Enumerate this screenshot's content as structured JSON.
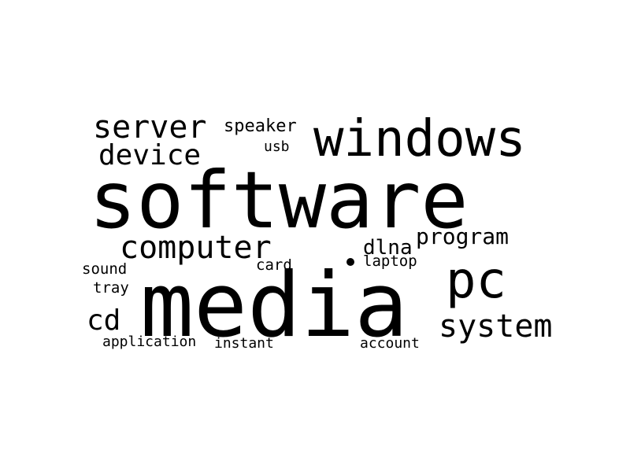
{
  "words": [
    {
      "text": "software",
      "id": "software"
    },
    {
      "text": "media",
      "id": "media"
    },
    {
      "text": "windows",
      "id": "windows"
    },
    {
      "text": "pc",
      "id": "pc"
    },
    {
      "text": "system",
      "id": "system"
    },
    {
      "text": "computer",
      "id": "computer"
    },
    {
      "text": "server",
      "id": "server"
    },
    {
      "text": "device",
      "id": "device"
    },
    {
      "text": "program",
      "id": "program"
    },
    {
      "text": "cd",
      "id": "cd"
    },
    {
      "text": "speaker",
      "id": "speaker"
    },
    {
      "text": "dlna",
      "id": "dlna"
    },
    {
      "text": "usb",
      "id": "usb"
    },
    {
      "text": "card",
      "id": "card"
    },
    {
      "text": "laptop",
      "id": "laptop"
    },
    {
      "text": "sound",
      "id": "sound"
    },
    {
      "text": "tray",
      "id": "tray"
    },
    {
      "text": "application",
      "id": "application"
    },
    {
      "text": "instant",
      "id": "instant"
    },
    {
      "text": "account",
      "id": "account"
    }
  ],
  "colors": {
    "background": "#ffffff",
    "text": "#000000"
  }
}
